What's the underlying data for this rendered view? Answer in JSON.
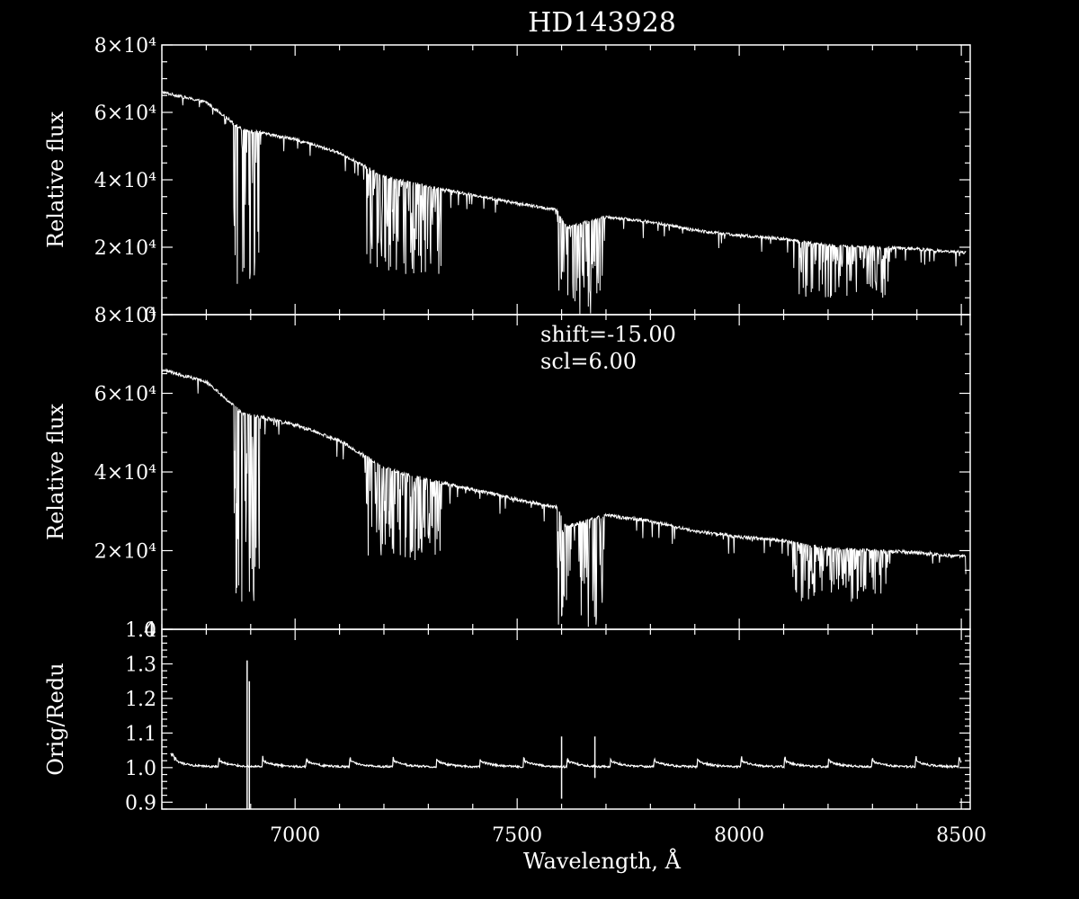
{
  "chart_data": [
    {
      "type": "line",
      "title": "HD143928",
      "ylabel": "Relative flux",
      "xlim": [
        6700,
        8520
      ],
      "ylim": [
        0,
        80000
      ],
      "ytick_labels": [
        "0",
        "2×10⁴",
        "4×10⁴",
        "6×10⁴",
        "8×10⁴"
      ],
      "ytick_values": [
        0,
        20000,
        40000,
        60000,
        80000
      ],
      "grid": false,
      "continuum": [
        [
          6700,
          66000
        ],
        [
          6800,
          63000
        ],
        [
          6880,
          55000
        ],
        [
          7000,
          52000
        ],
        [
          7100,
          48000
        ],
        [
          7200,
          41000
        ],
        [
          7300,
          38000
        ],
        [
          7400,
          35500
        ],
        [
          7500,
          33000
        ],
        [
          7590,
          31000
        ],
        [
          7610,
          26000
        ],
        [
          7700,
          29000
        ],
        [
          7800,
          27500
        ],
        [
          7900,
          25000
        ],
        [
          8000,
          23500
        ],
        [
          8100,
          22500
        ],
        [
          8200,
          20500
        ],
        [
          8300,
          20000
        ],
        [
          8400,
          19500
        ],
        [
          8500,
          18500
        ]
      ],
      "absorption_bands": [
        {
          "from": 6860,
          "to": 6920,
          "min": 1000
        },
        {
          "from": 7160,
          "to": 7330,
          "min": 12000
        },
        {
          "from": 7590,
          "to": 7700,
          "min": 0
        },
        {
          "from": 8120,
          "to": 8340,
          "min": 5000
        }
      ]
    },
    {
      "type": "line",
      "ylabel": "Relative flux",
      "xlim": [
        6700,
        8520
      ],
      "ylim": [
        0,
        80000
      ],
      "ytick_labels": [
        "0",
        "2×10⁴",
        "4×10⁴",
        "6×10⁴",
        "8×10⁴"
      ],
      "ytick_values": [
        0,
        20000,
        40000,
        60000,
        80000
      ],
      "grid": false,
      "annotations": [
        "shift=-15.00",
        "scl=6.00"
      ],
      "continuum": [
        [
          6700,
          66000
        ],
        [
          6800,
          63000
        ],
        [
          6880,
          55000
        ],
        [
          7000,
          52000
        ],
        [
          7100,
          48000
        ],
        [
          7200,
          41000
        ],
        [
          7300,
          38000
        ],
        [
          7400,
          35500
        ],
        [
          7500,
          33000
        ],
        [
          7590,
          31000
        ],
        [
          7610,
          26000
        ],
        [
          7700,
          29000
        ],
        [
          7800,
          27500
        ],
        [
          7900,
          25000
        ],
        [
          8000,
          23500
        ],
        [
          8100,
          22500
        ],
        [
          8200,
          20500
        ],
        [
          8300,
          20000
        ],
        [
          8400,
          19500
        ],
        [
          8500,
          18500
        ]
      ],
      "absorption_bands": [
        {
          "from": 6860,
          "to": 6920,
          "min": 3000
        },
        {
          "from": 7160,
          "to": 7330,
          "min": 17000
        },
        {
          "from": 7590,
          "to": 7700,
          "min": 0
        },
        {
          "from": 8120,
          "to": 8340,
          "min": 7000
        }
      ]
    },
    {
      "type": "line",
      "ylabel": "Orig/Redu",
      "xlabel": "Wavelength, Å",
      "xlim": [
        6700,
        8520
      ],
      "ylim": [
        0.88,
        1.4
      ],
      "xtick_labels": [
        "7000",
        "7500",
        "8000",
        "8500"
      ],
      "xtick_values": [
        7000,
        7500,
        8000,
        8500
      ],
      "ytick_labels": [
        "0.9",
        "1.0",
        "1.1",
        "1.2",
        "1.3",
        "1.4"
      ],
      "ytick_values": [
        0.9,
        1.0,
        1.1,
        1.2,
        1.3,
        1.4
      ],
      "grid": false,
      "baseline": 1.01,
      "spikes": [
        {
          "x": 6892,
          "low": 0.88,
          "high": 1.31
        },
        {
          "x": 6897,
          "low": 0.88,
          "high": 1.25
        },
        {
          "x": 7600,
          "low": 0.91,
          "high": 1.09
        },
        {
          "x": 7675,
          "low": 0.97,
          "high": 1.09
        }
      ]
    }
  ]
}
